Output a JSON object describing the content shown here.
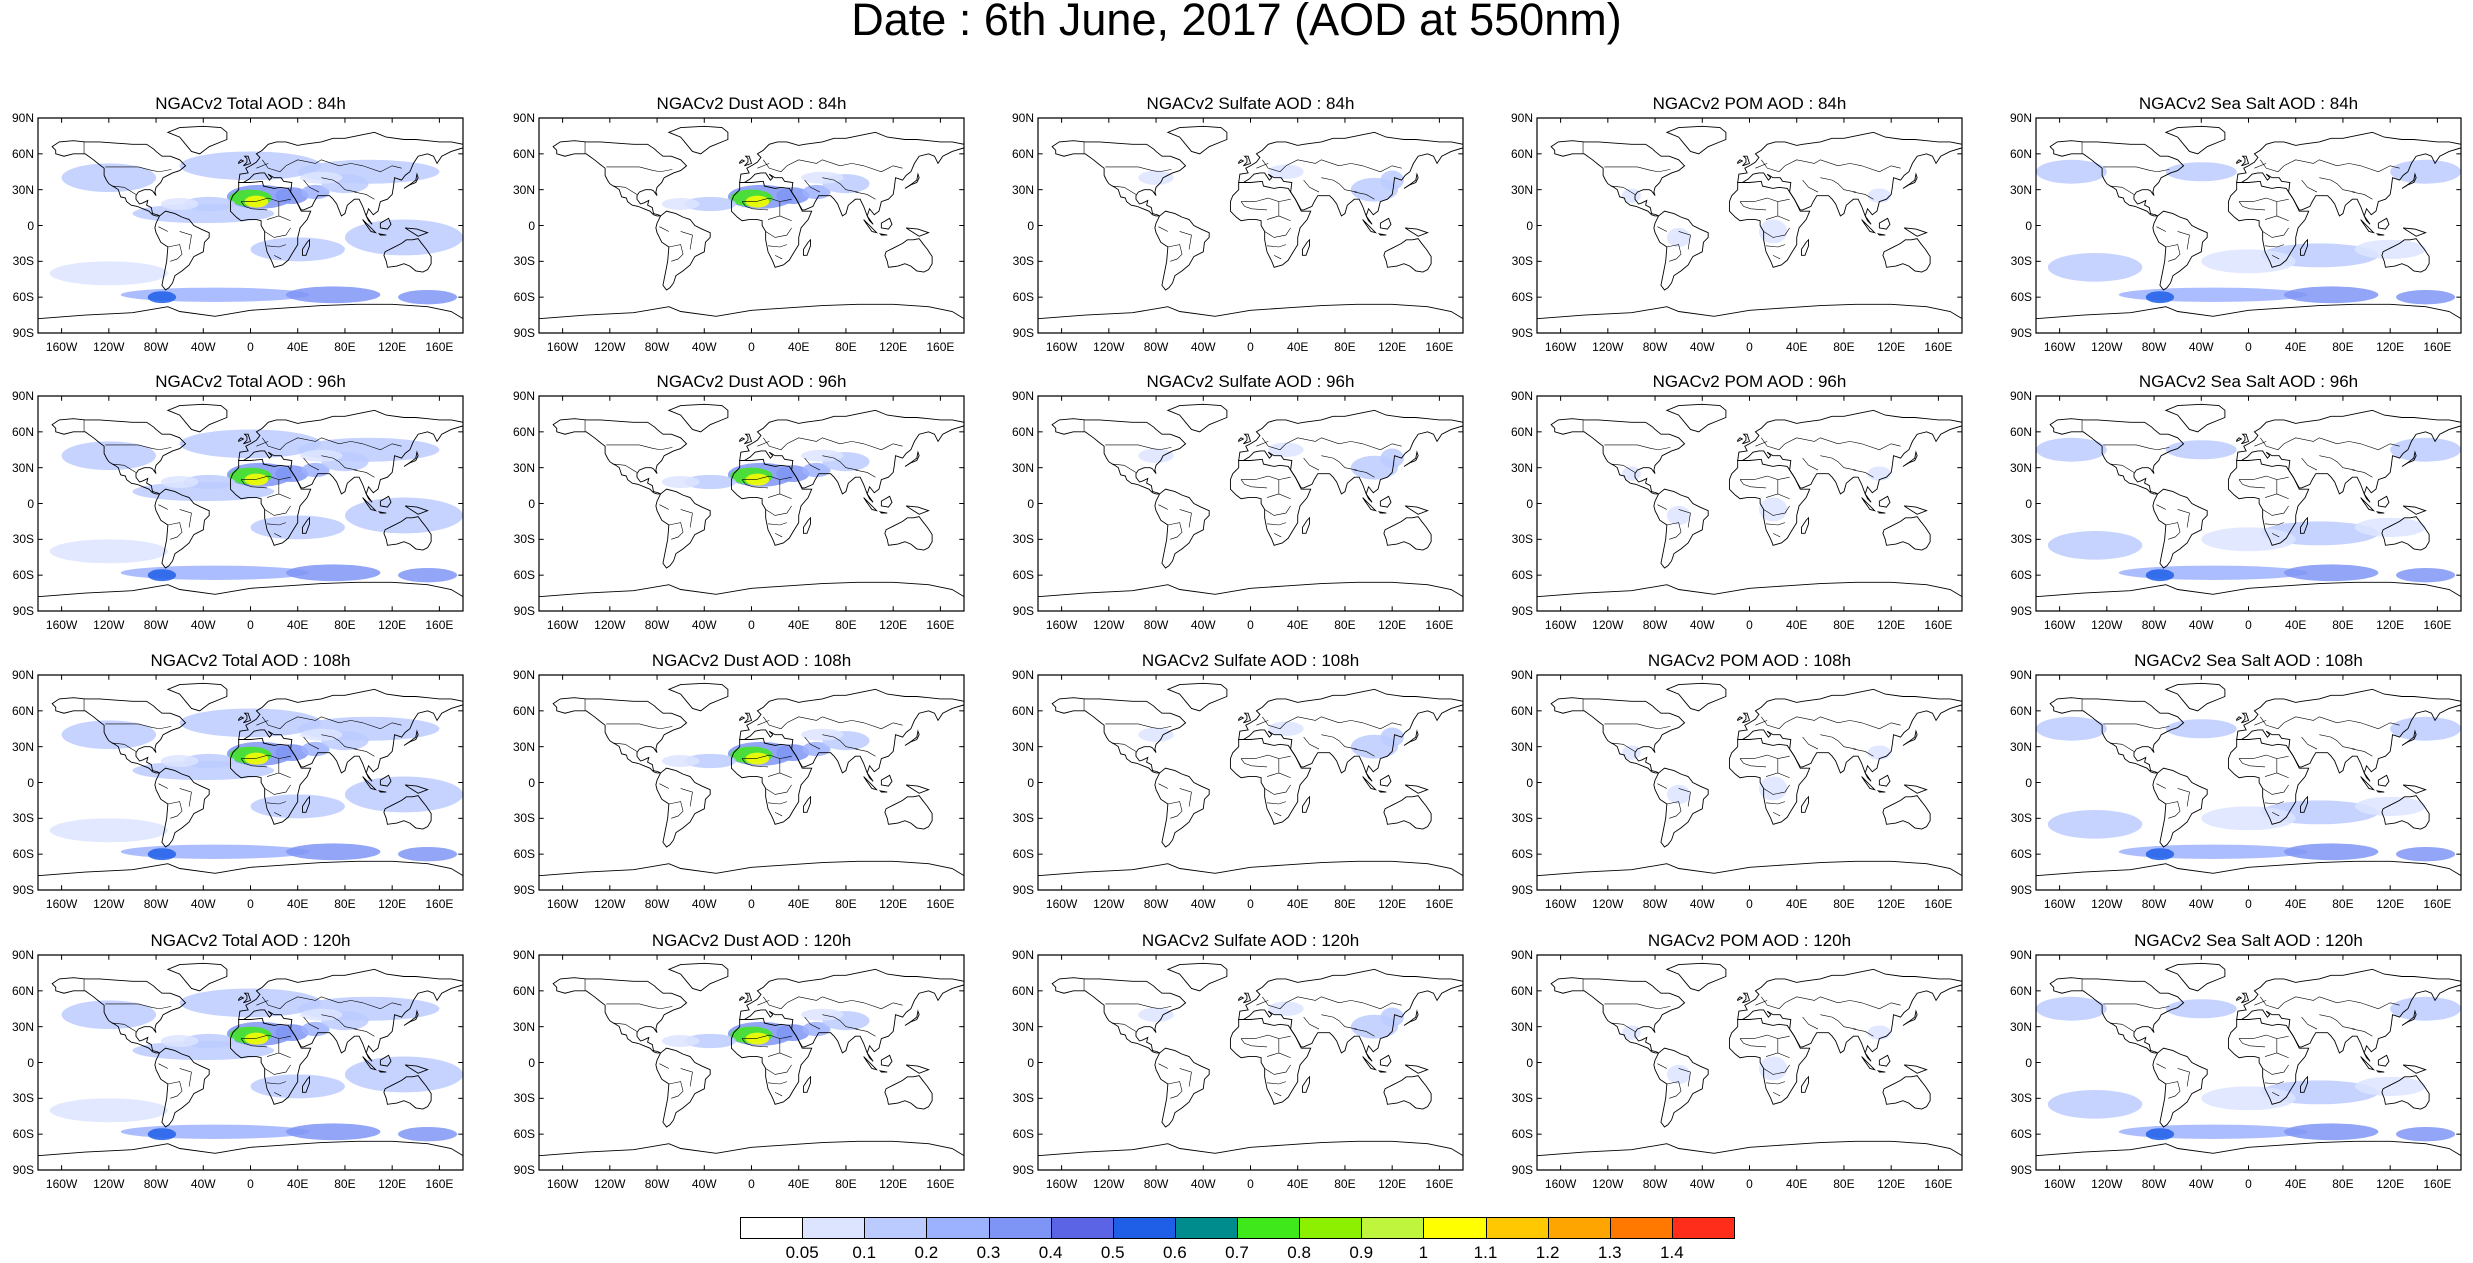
{
  "title": "Date : 6th June, 2017 (AOD at 550nm)",
  "panel_titles": [
    [
      "NGACv2 Total AOD : 84h",
      "NGACv2 Dust AOD : 84h",
      "NGACv2 Sulfate AOD : 84h",
      "NGACv2 POM AOD : 84h",
      "NGACv2 Sea Salt AOD : 84h"
    ],
    [
      "NGACv2 Total AOD : 96h",
      "NGACv2 Dust AOD : 96h",
      "NGACv2 Sulfate AOD : 96h",
      "NGACv2 POM AOD : 96h",
      "NGACv2 Sea Salt AOD : 96h"
    ],
    [
      "NGACv2 Total AOD : 108h",
      "NGACv2 Dust AOD : 108h",
      "NGACv2 Sulfate AOD : 108h",
      "NGACv2 POM AOD : 108h",
      "NGACv2 Sea Salt AOD : 108h"
    ],
    [
      "NGACv2 Total AOD : 120h",
      "NGACv2 Dust AOD : 120h",
      "NGACv2 Sulfate AOD : 120h",
      "NGACv2 POM AOD : 120h",
      "NGACv2 Sea Salt  AOD : 120h"
    ]
  ],
  "lat_ticks": [
    "90N",
    "60N",
    "30N",
    "0",
    "30S",
    "60S",
    "90S"
  ],
  "lon_ticks": [
    "160W",
    "120W",
    "80W",
    "40W",
    "0",
    "40E",
    "80E",
    "120E",
    "160E"
  ],
  "colorbar": {
    "labels": [
      "0.05",
      "0.1",
      "0.2",
      "0.3",
      "0.4",
      "0.5",
      "0.6",
      "0.7",
      "0.8",
      "0.9",
      "1",
      "1.1",
      "1.2",
      "1.3",
      "1.4"
    ],
    "colors": [
      "#ffffff",
      "#dce4ff",
      "#bccbff",
      "#9db2ff",
      "#7f95f5",
      "#5c64e6",
      "#1f5fe8",
      "#008c8c",
      "#3ee81a",
      "#8cf000",
      "#bff53c",
      "#ffff00",
      "#ffc800",
      "#ffa500",
      "#ff7800",
      "#ff2d1a"
    ]
  }
}
